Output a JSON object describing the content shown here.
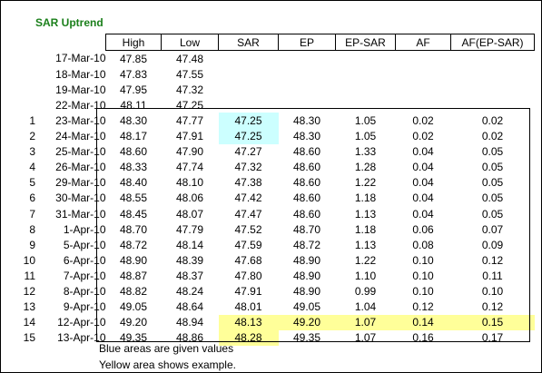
{
  "title": "SAR Uptrend",
  "headers": [
    "High",
    "Low",
    "SAR",
    "EP",
    "EP-SAR",
    "AF",
    "AF(EP-SAR)"
  ],
  "pre_rows": [
    {
      "date": "17-Mar-10",
      "high": "47.85",
      "low": "47.48"
    },
    {
      "date": "18-Mar-10",
      "high": "47.83",
      "low": "47.55"
    },
    {
      "date": "19-Mar-10",
      "high": "47.95",
      "low": "47.32"
    },
    {
      "date": "22-Mar-10",
      "high": "48.11",
      "low": "47.25"
    }
  ],
  "rows": [
    {
      "n": "1",
      "date": "23-Mar-10",
      "high": "48.30",
      "low": "47.77",
      "sar": "47.25",
      "ep": "48.30",
      "epsar": "1.05",
      "af": "0.02",
      "afep": "0.02"
    },
    {
      "n": "2",
      "date": "24-Mar-10",
      "high": "48.17",
      "low": "47.91",
      "sar": "47.25",
      "ep": "48.30",
      "epsar": "1.05",
      "af": "0.02",
      "afep": "0.02"
    },
    {
      "n": "3",
      "date": "25-Mar-10",
      "high": "48.60",
      "low": "47.90",
      "sar": "47.27",
      "ep": "48.60",
      "epsar": "1.33",
      "af": "0.04",
      "afep": "0.05"
    },
    {
      "n": "4",
      "date": "26-Mar-10",
      "high": "48.33",
      "low": "47.74",
      "sar": "47.32",
      "ep": "48.60",
      "epsar": "1.28",
      "af": "0.04",
      "afep": "0.05"
    },
    {
      "n": "5",
      "date": "29-Mar-10",
      "high": "48.40",
      "low": "48.10",
      "sar": "47.38",
      "ep": "48.60",
      "epsar": "1.22",
      "af": "0.04",
      "afep": "0.05"
    },
    {
      "n": "6",
      "date": "30-Mar-10",
      "high": "48.55",
      "low": "48.06",
      "sar": "47.42",
      "ep": "48.60",
      "epsar": "1.18",
      "af": "0.04",
      "afep": "0.05"
    },
    {
      "n": "7",
      "date": "31-Mar-10",
      "high": "48.45",
      "low": "48.07",
      "sar": "47.47",
      "ep": "48.60",
      "epsar": "1.13",
      "af": "0.04",
      "afep": "0.05"
    },
    {
      "n": "8",
      "date": "1-Apr-10",
      "high": "48.70",
      "low": "47.79",
      "sar": "47.52",
      "ep": "48.70",
      "epsar": "1.18",
      "af": "0.06",
      "afep": "0.07"
    },
    {
      "n": "9",
      "date": "5-Apr-10",
      "high": "48.72",
      "low": "48.14",
      "sar": "47.59",
      "ep": "48.72",
      "epsar": "1.13",
      "af": "0.08",
      "afep": "0.09"
    },
    {
      "n": "10",
      "date": "6-Apr-10",
      "high": "48.90",
      "low": "48.39",
      "sar": "47.68",
      "ep": "48.90",
      "epsar": "1.22",
      "af": "0.10",
      "afep": "0.12"
    },
    {
      "n": "11",
      "date": "7-Apr-10",
      "high": "48.87",
      "low": "48.37",
      "sar": "47.80",
      "ep": "48.90",
      "epsar": "1.10",
      "af": "0.10",
      "afep": "0.11"
    },
    {
      "n": "12",
      "date": "8-Apr-10",
      "high": "48.82",
      "low": "48.24",
      "sar": "47.91",
      "ep": "48.90",
      "epsar": "0.99",
      "af": "0.10",
      "afep": "0.10"
    },
    {
      "n": "13",
      "date": "9-Apr-10",
      "high": "49.05",
      "low": "48.64",
      "sar": "48.01",
      "ep": "49.05",
      "epsar": "1.04",
      "af": "0.12",
      "afep": "0.12"
    },
    {
      "n": "14",
      "date": "12-Apr-10",
      "high": "49.20",
      "low": "48.94",
      "sar": "48.13",
      "ep": "49.20",
      "epsar": "1.07",
      "af": "0.14",
      "afep": "0.15"
    },
    {
      "n": "15",
      "date": "13-Apr-10",
      "high": "49.35",
      "low": "48.86",
      "sar": "48.28",
      "ep": "49.35",
      "epsar": "1.07",
      "af": "0.16",
      "afep": "0.17"
    }
  ],
  "notes": [
    "Blue areas are given values",
    "Yellow area shows example."
  ],
  "colors": {
    "title": "#1a7f1a",
    "given": "#ccffff",
    "example": "#ffff99"
  }
}
